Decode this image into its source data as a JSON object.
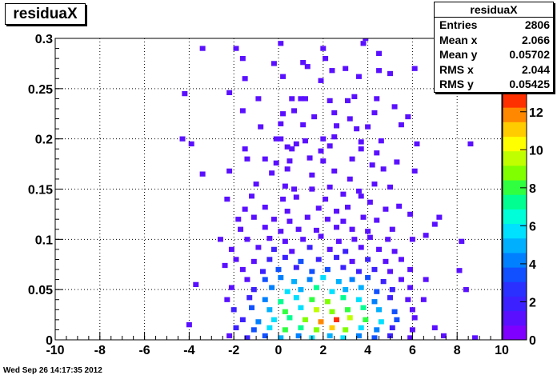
{
  "chart_data": {
    "type": "heatmap",
    "title": "residuaX",
    "xlim": [
      -10,
      10
    ],
    "ylim": [
      0,
      0.3
    ],
    "zlim": [
      0,
      13
    ],
    "x_ticks": [
      "-10",
      "-8",
      "-6",
      "-4",
      "-2",
      "0",
      "2",
      "4",
      "6",
      "8",
      "10"
    ],
    "y_ticks": [
      "0",
      "0.05",
      "0.1",
      "0.15",
      "0.2",
      "0.25",
      "0.3"
    ],
    "z_ticks": [
      "0",
      "2",
      "4",
      "6",
      "8",
      "10",
      "12"
    ],
    "grid": true,
    "bin_width_x": 0.25,
    "bin_height_y": 0.005,
    "stats": {
      "title": "residuaX",
      "rows": [
        {
          "label": "Entries",
          "value": "2806"
        },
        {
          "label": "Mean x",
          "value": "2.066"
        },
        {
          "label": "Mean y",
          "value": "0.05702"
        },
        {
          "label": "RMS x",
          "value": "2.044"
        },
        {
          "label": "RMS y",
          "value": "0.05425"
        }
      ]
    },
    "palette": [
      "#7f00ff",
      "#5a10ff",
      "#3c20ff",
      "#2a30ff",
      "#1050ff",
      "#0080ff",
      "#00b0ff",
      "#00e0ff",
      "#00ffd8",
      "#00ff90",
      "#30ff40",
      "#80ff00",
      "#c0ff00",
      "#ffff00",
      "#ffcc00",
      "#ff8800",
      "#ff3000"
    ],
    "bins": [
      [
        -3.4,
        0.29,
        1
      ],
      [
        -1.9,
        0.29,
        1
      ],
      [
        0.1,
        0.295,
        1
      ],
      [
        2.0,
        0.29,
        1
      ],
      [
        2.1,
        0.28,
        1
      ],
      [
        3.8,
        0.295,
        1
      ],
      [
        3.9,
        0.3,
        1
      ],
      [
        4.5,
        0.285,
        1
      ],
      [
        -1.6,
        0.28,
        1
      ],
      [
        -0.2,
        0.275,
        1
      ],
      [
        1.1,
        0.276,
        1
      ],
      [
        1.3,
        0.272,
        1
      ],
      [
        2.4,
        0.268,
        1
      ],
      [
        3.0,
        0.27,
        1
      ],
      [
        4.5,
        0.268,
        1
      ],
      [
        6.1,
        0.27,
        1
      ],
      [
        -1.5,
        0.26,
        1
      ],
      [
        0.2,
        0.262,
        1
      ],
      [
        1.9,
        0.258,
        1
      ],
      [
        3.6,
        0.262,
        1
      ],
      [
        5.0,
        0.265,
        1
      ],
      [
        -4.2,
        0.245,
        1
      ],
      [
        -2.2,
        0.246,
        1
      ],
      [
        -0.9,
        0.24,
        1
      ],
      [
        0.6,
        0.24,
        1
      ],
      [
        1.0,
        0.24,
        1
      ],
      [
        1.2,
        0.24,
        1
      ],
      [
        2.3,
        0.238,
        1
      ],
      [
        3.1,
        0.238,
        1
      ],
      [
        3.4,
        0.242,
        1
      ],
      [
        4.4,
        0.24,
        1
      ],
      [
        5.2,
        0.232,
        1
      ],
      [
        -1.6,
        0.228,
        1
      ],
      [
        0.2,
        0.225,
        1
      ],
      [
        0.7,
        0.228,
        1
      ],
      [
        1.6,
        0.222,
        1
      ],
      [
        2.5,
        0.226,
        1
      ],
      [
        3.2,
        0.22,
        1
      ],
      [
        4.3,
        0.226,
        1
      ],
      [
        5.8,
        0.222,
        1
      ],
      [
        0.1,
        0.215,
        1
      ],
      [
        -0.8,
        0.212,
        1
      ],
      [
        1.1,
        0.214,
        1
      ],
      [
        2.6,
        0.213,
        1
      ],
      [
        3.5,
        0.21,
        1
      ],
      [
        4.0,
        0.212,
        1
      ],
      [
        5.5,
        0.214,
        1
      ],
      [
        -4.3,
        0.2,
        1
      ],
      [
        -3.9,
        0.195,
        1
      ],
      [
        -0.1,
        0.2,
        1
      ],
      [
        0.1,
        0.2,
        1
      ],
      [
        0.8,
        0.195,
        1
      ],
      [
        1.2,
        0.198,
        1
      ],
      [
        2.0,
        0.2,
        1
      ],
      [
        2.5,
        0.202,
        1
      ],
      [
        3.7,
        0.197,
        1
      ],
      [
        4.6,
        0.198,
        1
      ],
      [
        6.2,
        0.195,
        1
      ],
      [
        8.6,
        0.195,
        1
      ],
      [
        -1.5,
        0.19,
        1
      ],
      [
        0.4,
        0.192,
        1
      ],
      [
        0.6,
        0.19,
        1
      ],
      [
        1.9,
        0.188,
        1
      ],
      [
        2.3,
        0.193,
        1
      ],
      [
        3.7,
        0.19,
        1
      ],
      [
        4.4,
        0.186,
        1
      ],
      [
        -1.4,
        0.18,
        1
      ],
      [
        -0.6,
        0.18,
        1
      ],
      [
        -0.1,
        0.176,
        1
      ],
      [
        0.5,
        0.178,
        1
      ],
      [
        1.4,
        0.181,
        1
      ],
      [
        2.0,
        0.178,
        1
      ],
      [
        3.3,
        0.18,
        1
      ],
      [
        4.2,
        0.174,
        1
      ],
      [
        5.3,
        0.177,
        1
      ],
      [
        -2.2,
        0.168,
        1
      ],
      [
        -0.3,
        0.166,
        1
      ],
      [
        0.4,
        0.17,
        1
      ],
      [
        1.5,
        0.164,
        1
      ],
      [
        2.5,
        0.168,
        1
      ],
      [
        3.2,
        0.16,
        1
      ],
      [
        4.7,
        0.17,
        1
      ],
      [
        6.1,
        0.168,
        1
      ],
      [
        -3.4,
        0.165,
        1
      ],
      [
        -1.0,
        0.155,
        1
      ],
      [
        0.3,
        0.153,
        1
      ],
      [
        0.7,
        0.15,
        1
      ],
      [
        1.5,
        0.15,
        1
      ],
      [
        2.3,
        0.152,
        1
      ],
      [
        3.6,
        0.148,
        1
      ],
      [
        4.3,
        0.155,
        1
      ],
      [
        5.0,
        0.152,
        1
      ],
      [
        -2.3,
        0.14,
        1
      ],
      [
        -1.2,
        0.143,
        1
      ],
      [
        0.2,
        0.14,
        1
      ],
      [
        0.8,
        0.142,
        1
      ],
      [
        2.1,
        0.14,
        1
      ],
      [
        2.9,
        0.145,
        1
      ],
      [
        3.7,
        0.143,
        1
      ],
      [
        4.1,
        0.137,
        1
      ],
      [
        -1.5,
        0.13,
        1
      ],
      [
        -0.6,
        0.132,
        1
      ],
      [
        0.4,
        0.128,
        1
      ],
      [
        1.8,
        0.131,
        1
      ],
      [
        2.6,
        0.128,
        1
      ],
      [
        3.1,
        0.132,
        1
      ],
      [
        4.8,
        0.13,
        1
      ],
      [
        5.4,
        0.133,
        1
      ],
      [
        -1.8,
        0.12,
        1
      ],
      [
        -1.1,
        0.122,
        1
      ],
      [
        -0.2,
        0.12,
        1
      ],
      [
        0.5,
        0.118,
        1
      ],
      [
        1.3,
        0.122,
        1
      ],
      [
        2.2,
        0.12,
        1
      ],
      [
        2.9,
        0.118,
        1
      ],
      [
        3.8,
        0.122,
        1
      ],
      [
        4.4,
        0.119,
        1
      ],
      [
        5.9,
        0.125,
        1
      ],
      [
        7.2,
        0.122,
        1
      ],
      [
        -1.7,
        0.11,
        1
      ],
      [
        -0.6,
        0.112,
        1
      ],
      [
        0.1,
        0.108,
        1
      ],
      [
        0.9,
        0.11,
        1
      ],
      [
        1.7,
        0.109,
        1
      ],
      [
        2.6,
        0.112,
        1
      ],
      [
        3.3,
        0.11,
        1
      ],
      [
        4.0,
        0.108,
        1
      ],
      [
        5.1,
        0.11,
        1
      ],
      [
        7.0,
        0.115,
        1
      ],
      [
        -2.6,
        0.1,
        1
      ],
      [
        -1.4,
        0.1,
        1
      ],
      [
        -0.4,
        0.101,
        1
      ],
      [
        0.3,
        0.098,
        1
      ],
      [
        1.1,
        0.1,
        1
      ],
      [
        1.9,
        0.103,
        1
      ],
      [
        2.7,
        0.098,
        1
      ],
      [
        3.4,
        0.1,
        1
      ],
      [
        4.1,
        0.102,
        1
      ],
      [
        4.9,
        0.1,
        1
      ],
      [
        6.0,
        0.1,
        1
      ],
      [
        8.2,
        0.098,
        1
      ],
      [
        6.6,
        0.104,
        1
      ],
      [
        -2.1,
        0.09,
        1
      ],
      [
        -0.9,
        0.092,
        1
      ],
      [
        -0.2,
        0.09,
        2
      ],
      [
        0.6,
        0.088,
        1
      ],
      [
        1.4,
        0.092,
        2
      ],
      [
        2.3,
        0.09,
        1
      ],
      [
        3.0,
        0.088,
        2
      ],
      [
        3.7,
        0.092,
        1
      ],
      [
        4.5,
        0.09,
        1
      ],
      [
        5.2,
        0.088,
        1
      ],
      [
        -1.9,
        0.08,
        1
      ],
      [
        -1.1,
        0.078,
        1
      ],
      [
        -0.4,
        0.08,
        2
      ],
      [
        0.3,
        0.082,
        2
      ],
      [
        1.0,
        0.078,
        3
      ],
      [
        1.8,
        0.08,
        2
      ],
      [
        2.6,
        0.082,
        2
      ],
      [
        3.3,
        0.078,
        1
      ],
      [
        4.0,
        0.08,
        2
      ],
      [
        4.8,
        0.078,
        1
      ],
      [
        5.5,
        0.08,
        1
      ],
      [
        -1.6,
        0.07,
        1
      ],
      [
        -0.7,
        0.068,
        2
      ],
      [
        0.0,
        0.07,
        3
      ],
      [
        0.8,
        0.072,
        2
      ],
      [
        1.5,
        0.068,
        3
      ],
      [
        2.2,
        0.07,
        3
      ],
      [
        2.9,
        0.072,
        2
      ],
      [
        3.6,
        0.068,
        2
      ],
      [
        4.3,
        0.07,
        2
      ],
      [
        5.0,
        0.068,
        1
      ],
      [
        5.9,
        0.07,
        1
      ],
      [
        8.1,
        0.069,
        1
      ],
      [
        -2.4,
        0.074,
        1
      ],
      [
        -1.4,
        0.06,
        1
      ],
      [
        -0.6,
        0.06,
        3
      ],
      [
        0.1,
        0.062,
        4
      ],
      [
        0.7,
        0.058,
        5
      ],
      [
        1.4,
        0.06,
        4
      ],
      [
        2.0,
        0.062,
        6
      ],
      [
        2.7,
        0.058,
        5
      ],
      [
        3.3,
        0.06,
        4
      ],
      [
        4.0,
        0.062,
        3
      ],
      [
        4.7,
        0.058,
        2
      ],
      [
        5.5,
        0.06,
        1
      ],
      [
        6.6,
        0.06,
        1
      ],
      [
        -3.7,
        0.055,
        1
      ],
      [
        -2.1,
        0.052,
        1
      ],
      [
        -1.1,
        0.05,
        2
      ],
      [
        -0.3,
        0.052,
        4
      ],
      [
        0.4,
        0.048,
        6
      ],
      [
        1.0,
        0.05,
        5
      ],
      [
        1.7,
        0.052,
        7
      ],
      [
        2.4,
        0.048,
        6
      ],
      [
        3.0,
        0.05,
        5
      ],
      [
        3.7,
        0.052,
        5
      ],
      [
        4.4,
        0.048,
        3
      ],
      [
        5.1,
        0.05,
        2
      ],
      [
        5.9,
        0.052,
        1
      ],
      [
        8.4,
        0.05,
        1
      ],
      [
        -2.3,
        0.04,
        1
      ],
      [
        -1.3,
        0.042,
        2
      ],
      [
        -0.6,
        0.04,
        4
      ],
      [
        0.1,
        0.038,
        7
      ],
      [
        0.8,
        0.042,
        6
      ],
      [
        1.5,
        0.04,
        8
      ],
      [
        2.2,
        0.038,
        9
      ],
      [
        2.9,
        0.042,
        7
      ],
      [
        3.6,
        0.04,
        6
      ],
      [
        4.3,
        0.038,
        4
      ],
      [
        5.0,
        0.042,
        2
      ],
      [
        5.8,
        0.04,
        1
      ],
      [
        6.5,
        0.04,
        1
      ],
      [
        -2.0,
        0.03,
        2
      ],
      [
        -1.2,
        0.032,
        3
      ],
      [
        -0.4,
        0.03,
        5
      ],
      [
        0.3,
        0.028,
        8
      ],
      [
        1.0,
        0.032,
        6
      ],
      [
        1.7,
        0.03,
        10
      ],
      [
        2.4,
        0.028,
        9
      ],
      [
        3.1,
        0.03,
        8
      ],
      [
        3.8,
        0.032,
        7
      ],
      [
        4.5,
        0.03,
        5
      ],
      [
        5.2,
        0.028,
        3
      ],
      [
        6.0,
        0.03,
        1
      ],
      [
        -1.6,
        0.02,
        2
      ],
      [
        -0.9,
        0.018,
        4
      ],
      [
        -0.2,
        0.02,
        6
      ],
      [
        0.5,
        0.022,
        7
      ],
      [
        1.2,
        0.02,
        9
      ],
      [
        1.9,
        0.018,
        12
      ],
      [
        2.6,
        0.02,
        13
      ],
      [
        3.2,
        0.022,
        10
      ],
      [
        3.9,
        0.02,
        8
      ],
      [
        4.6,
        0.018,
        6
      ],
      [
        5.3,
        0.02,
        3
      ],
      [
        6.1,
        0.022,
        1
      ],
      [
        -4.0,
        0.015,
        1
      ],
      [
        -1.9,
        0.012,
        2
      ],
      [
        -1.1,
        0.01,
        3
      ],
      [
        -0.4,
        0.012,
        6
      ],
      [
        0.3,
        0.01,
        8
      ],
      [
        1.0,
        0.012,
        7
      ],
      [
        1.7,
        0.01,
        9
      ],
      [
        2.4,
        0.012,
        11
      ],
      [
        3.0,
        0.01,
        9
      ],
      [
        3.7,
        0.012,
        6
      ],
      [
        4.4,
        0.01,
        4
      ],
      [
        5.1,
        0.012,
        2
      ],
      [
        6.0,
        0.01,
        1
      ],
      [
        7.0,
        0.012,
        1
      ],
      [
        -2.2,
        0.004,
        1
      ],
      [
        -1.4,
        0.002,
        2
      ],
      [
        -0.6,
        0.004,
        3
      ],
      [
        0.1,
        0.002,
        5
      ],
      [
        0.9,
        0.004,
        4
      ],
      [
        1.5,
        0.002,
        6
      ],
      [
        2.3,
        0.004,
        5
      ],
      [
        2.9,
        0.002,
        6
      ],
      [
        3.6,
        0.004,
        4
      ],
      [
        4.3,
        0.002,
        3
      ],
      [
        5.0,
        0.004,
        2
      ],
      [
        5.9,
        0.002,
        1
      ],
      [
        7.4,
        0.004,
        1
      ],
      [
        8.8,
        0.002,
        1
      ]
    ]
  },
  "timestamp": "Wed Sep 26 14:17:35 2012"
}
